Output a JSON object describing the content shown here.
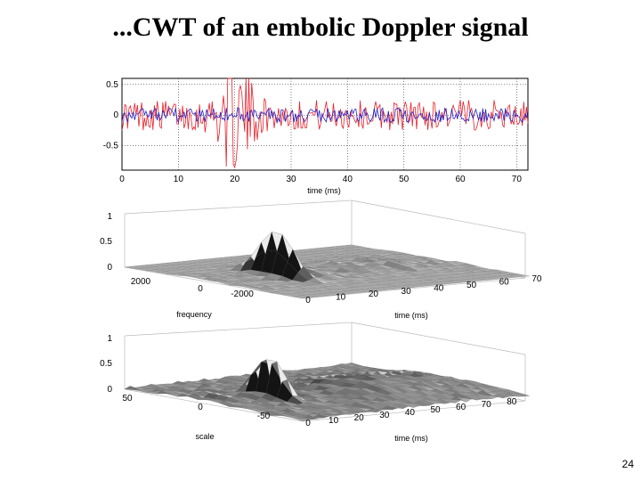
{
  "slide": {
    "title": "...CWT of an embolic Doppler signal",
    "page_number": "24"
  },
  "colors": {
    "red_series": "#e8202a",
    "blue_series": "#2020c8",
    "surface_dark": "#1a1a1a",
    "surface_light": "#e8e8e8"
  },
  "chart_data": [
    {
      "type": "line",
      "panel": "signal",
      "xlabel": "time (ms)",
      "xlim": [
        0,
        72
      ],
      "ylim": [
        -0.9,
        0.6
      ],
      "x_ticks": [
        "0",
        "10",
        "20",
        "30",
        "40",
        "50",
        "60",
        "70"
      ],
      "y_ticks": [
        "0.5",
        "0",
        "-0.5"
      ],
      "x_tick_values": [
        0,
        10,
        20,
        30,
        40,
        50,
        60,
        70
      ],
      "y_tick_values": [
        0.5,
        0,
        -0.5
      ],
      "series": [
        {
          "color": "#e8202a",
          "sample_step_ms": 0.25,
          "base_amplitude": 0.25,
          "peak_time_ms": 20,
          "peak_amplitude": 0.75
        },
        {
          "color": "#2020c8",
          "sample_step_ms": 0.25,
          "base_amplitude": 0.12
        }
      ],
      "grid": true
    },
    {
      "type": "surface",
      "panel": "frequency-time",
      "xlabel": "time (ms)",
      "ylabel": "frequency",
      "zlim": [
        0,
        1
      ],
      "z_ticks": [
        "1",
        "0.5",
        "0"
      ],
      "x_ticks": [
        "0",
        "10",
        "20",
        "30",
        "40",
        "50",
        "60",
        "70"
      ],
      "y_ticks": [
        "2000",
        "0",
        "-2000"
      ],
      "peak": {
        "time_ms": 20,
        "frequency": 0,
        "value": 0.82
      },
      "secondary_peaks": [
        {
          "time_ms": 28,
          "value": 0.12
        },
        {
          "time_ms": 42,
          "value": 0.1
        },
        {
          "time_ms": 55,
          "value": 0.09
        }
      ]
    },
    {
      "type": "surface",
      "panel": "scale-time",
      "xlabel": "time (ms)",
      "ylabel": "scale",
      "zlim": [
        0,
        1
      ],
      "z_ticks": [
        "1",
        "0.5",
        "0"
      ],
      "x_ticks": [
        "0",
        "10",
        "20",
        "30",
        "40",
        "50",
        "60",
        "70",
        "80"
      ],
      "y_ticks": [
        "50",
        "0",
        "-50"
      ],
      "peak": {
        "time_ms": 20,
        "scale": 0,
        "value": 0.95
      },
      "ridges": [
        {
          "time_ms": 48,
          "value": 0.25
        },
        {
          "time_ms": 70,
          "value": 0.15
        }
      ]
    }
  ]
}
